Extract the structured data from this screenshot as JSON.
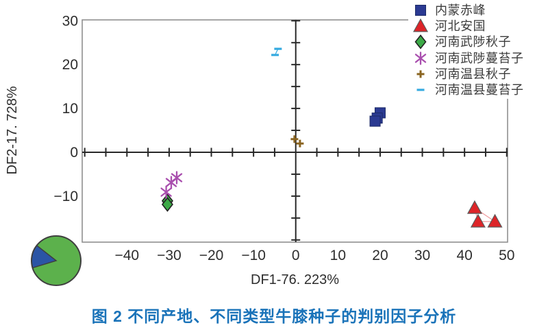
{
  "figure": {
    "caption": "图 2  不同产地、不同类型牛膝种子的判别因子分析",
    "caption_color": "#1a73b9"
  },
  "chart_data": {
    "type": "scatter",
    "title": "",
    "xlabel": "DF1-76. 223%",
    "ylabel": "DF2-17. 728%",
    "xlim": [
      -50.6,
      50.2
    ],
    "ylim": [
      -20.5,
      30.2
    ],
    "x_ticks": [
      -40,
      -30,
      -20,
      -10,
      0,
      10,
      20,
      30,
      40,
      50
    ],
    "y_ticks": [
      -10,
      0,
      10,
      20,
      30
    ],
    "minor_tick_step": 5,
    "grid": false,
    "zero_lines": true,
    "legend_position": "top-right",
    "axis_color": "#2d2d2d",
    "frame_color": "#8f8f8f",
    "series": [
      {
        "name": "内蒙赤峰",
        "marker": "square",
        "color": "#2b3a92",
        "edge": "#1c2a66",
        "points": [
          [
            20.0,
            9.0
          ],
          [
            19.3,
            7.8
          ],
          [
            18.8,
            7.1
          ]
        ]
      },
      {
        "name": "河北安国",
        "marker": "triangle",
        "color": "#dd2428",
        "edge": "#5a5a5a",
        "points": [
          [
            42.4,
            -12.7
          ],
          [
            43.2,
            -15.8
          ],
          [
            47.2,
            -15.8
          ]
        ],
        "connect": [
          [
            0,
            1
          ],
          [
            0,
            2
          ],
          [
            1,
            2
          ]
        ],
        "connect_color": "#ef9a9c"
      },
      {
        "name": "河南武陟秋子",
        "marker": "diamond",
        "color": "#3caa47",
        "edge": "#222222",
        "points": [
          [
            -30.4,
            -11.1
          ],
          [
            -30.4,
            -11.9
          ]
        ]
      },
      {
        "name": "河南武陟蔓苔子",
        "marker": "asterisk",
        "color": "#a94fae",
        "points": [
          [
            -28.2,
            -5.8
          ],
          [
            -29.5,
            -6.9
          ],
          [
            -30.7,
            -9.1
          ]
        ]
      },
      {
        "name": "河南温县秋子",
        "marker": "plus",
        "color": "#8a6420",
        "points": [
          [
            -0.3,
            3.0
          ],
          [
            1.0,
            2.0
          ]
        ]
      },
      {
        "name": "河南温县蔓苔子",
        "marker": "dash",
        "color": "#35aae0",
        "points": [
          [
            -4.2,
            23.6
          ],
          [
            -4.9,
            22.2
          ]
        ],
        "connect": [
          [
            0,
            1
          ]
        ],
        "connect_color": "#35aae0"
      }
    ]
  },
  "pie_inset": {
    "green_color": "#5cb14c",
    "blue_color": "#2b55a5",
    "outline_color": "#3f3f3f",
    "blue_slice_percent": 15.3,
    "green_slice_percent": 84.7,
    "blue_start_deg": 142,
    "blue_end_deg": 197
  }
}
